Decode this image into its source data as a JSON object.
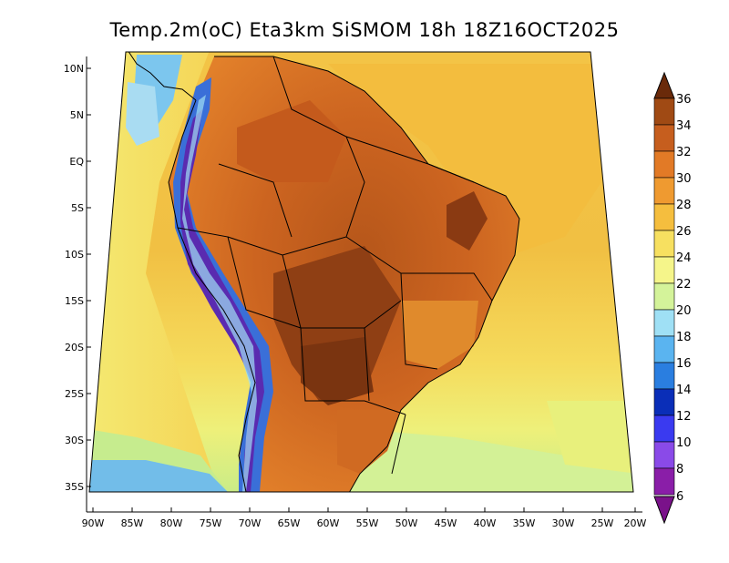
{
  "title": "Temp.2m(oC) Eta3km SiSMOM 18h 18Z16OCT2025",
  "map": {
    "lat_labels": [
      "10N",
      "5N",
      "EQ",
      "5S",
      "10S",
      "15S",
      "20S",
      "25S",
      "30S",
      "35S"
    ],
    "lon_labels": [
      "90W",
      "85W",
      "80W",
      "75W",
      "70W",
      "65W",
      "60W",
      "55W",
      "50W",
      "45W",
      "40W",
      "35W",
      "30W",
      "25W",
      "20W"
    ],
    "colors": {
      "ocean_warm": "#f5c542",
      "ocean_mild": "#f7dc5a",
      "ocean_cool": "#eef07a",
      "ocean_cold": "#c8ec88",
      "land_hot": "#d2691e",
      "land_hotter": "#b5561a",
      "land_hottest": "#8a3a12",
      "andes_cold": "#3a6fd8",
      "andes_colder": "#5a2bb0",
      "cold_sea": "#66b8ee",
      "coastline": "#000000"
    }
  },
  "colorbar": {
    "labels": [
      "36",
      "34",
      "32",
      "30",
      "28",
      "26",
      "24",
      "22",
      "20",
      "18",
      "16",
      "14",
      "12",
      "10",
      "8",
      "6"
    ],
    "colors": [
      "#a04a14",
      "#c65e1e",
      "#e27a26",
      "#ef9a30",
      "#f5be3e",
      "#f7e060",
      "#f5f58a",
      "#d4f39a",
      "#9fe0f5",
      "#5ab4f0",
      "#2a7ee0",
      "#0a2eb8",
      "#3a3af0",
      "#8a4ae8",
      "#8a1ea8"
    ],
    "top_color": "#6a2a0a",
    "bottom_color": "#7a128a"
  }
}
